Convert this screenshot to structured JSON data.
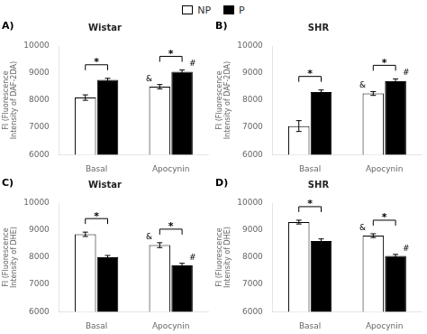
{
  "chart_data": [
    {
      "type": "bar",
      "panel_label": "A)",
      "title": "Wistar",
      "ylabel": "FI (Fluorescence\nIntensity of DAF-2DA)",
      "categories": [
        "Basal",
        "Apocynin"
      ],
      "series": [
        {
          "name": "NP",
          "color": "white",
          "edge_color": "black",
          "values": [
            8100,
            8500
          ],
          "errors": [
            100,
            80
          ]
        },
        {
          "name": "P",
          "color": "black",
          "edge_color": "black",
          "values": [
            8750,
            9050
          ],
          "errors": [
            60,
            70
          ]
        }
      ],
      "ylim": [
        6000,
        10000
      ],
      "yticks": [
        6000,
        7000,
        8000,
        9000,
        10000
      ],
      "grid": false,
      "annotations": [
        {
          "text": "*",
          "category": "Basal",
          "between": [
            "NP",
            "P"
          ]
        },
        {
          "text": "*",
          "category": "Apocynin",
          "between": [
            "NP",
            "P"
          ]
        },
        {
          "text": "&",
          "category": "Apocynin",
          "series": "NP"
        },
        {
          "text": "#",
          "category": "Apocynin",
          "series": "P"
        }
      ]
    },
    {
      "type": "bar",
      "panel_label": "B)",
      "title": "SHR",
      "ylabel": "FI (Fluorescence\nIntensity of DAF-2DA)",
      "categories": [
        "Basal",
        "Apocynin"
      ],
      "series": [
        {
          "name": "NP",
          "color": "white",
          "edge_color": "black",
          "values": [
            7050,
            8250
          ],
          "errors": [
            200,
            70
          ]
        },
        {
          "name": "P",
          "color": "black",
          "edge_color": "black",
          "values": [
            8300,
            8700
          ],
          "errors": [
            80,
            90
          ]
        }
      ],
      "ylim": [
        6000,
        10000
      ],
      "yticks": [
        6000,
        7000,
        8000,
        9000,
        10000
      ],
      "grid": false,
      "annotations": [
        {
          "text": "*",
          "category": "Basal",
          "between": [
            "NP",
            "P"
          ]
        },
        {
          "text": "*",
          "category": "Apocynin",
          "between": [
            "NP",
            "P"
          ]
        },
        {
          "text": "&",
          "category": "Apocynin",
          "series": "NP"
        },
        {
          "text": "#",
          "category": "Apocynin",
          "series": "P"
        }
      ]
    },
    {
      "type": "bar",
      "panel_label": "C)",
      "title": "Wistar",
      "ylabel": "FI (Fluorescence\nIntensity of DHE)",
      "categories": [
        "Basal",
        "Apocynin"
      ],
      "series": [
        {
          "name": "NP",
          "color": "white",
          "edge_color": "black",
          "values": [
            8850,
            8450
          ],
          "errors": [
            80,
            90
          ]
        },
        {
          "name": "P",
          "color": "black",
          "edge_color": "black",
          "values": [
            8000,
            7700
          ],
          "errors": [
            70,
            80
          ]
        }
      ],
      "ylim": [
        6000,
        10000
      ],
      "yticks": [
        6000,
        7000,
        8000,
        9000,
        10000
      ],
      "grid": false,
      "annotations": [
        {
          "text": "*",
          "category": "Basal",
          "between": [
            "NP",
            "P"
          ]
        },
        {
          "text": "*",
          "category": "Apocynin",
          "between": [
            "NP",
            "P"
          ]
        },
        {
          "text": "&",
          "category": "Apocynin",
          "series": "NP"
        },
        {
          "text": "#",
          "category": "Apocynin",
          "series": "P"
        }
      ]
    },
    {
      "type": "bar",
      "panel_label": "D)",
      "title": "SHR",
      "ylabel": "FI (Fluorescence\nIntensity of DHE)",
      "categories": [
        "Basal",
        "Apocynin"
      ],
      "series": [
        {
          "name": "NP",
          "color": "white",
          "edge_color": "black",
          "values": [
            9300,
            8800
          ],
          "errors": [
            70,
            70
          ]
        },
        {
          "name": "P",
          "color": "black",
          "edge_color": "black",
          "values": [
            8600,
            8050
          ],
          "errors": [
            80,
            60
          ]
        }
      ],
      "ylim": [
        6000,
        10000
      ],
      "yticks": [
        6000,
        7000,
        8000,
        9000,
        10000
      ],
      "grid": false,
      "annotations": [
        {
          "text": "*",
          "category": "Basal",
          "between": [
            "NP",
            "P"
          ]
        },
        {
          "text": "*",
          "category": "Apocynin",
          "between": [
            "NP",
            "P"
          ]
        },
        {
          "text": "&",
          "category": "Apocynin",
          "series": "NP"
        },
        {
          "text": "#",
          "category": "Apocynin",
          "series": "P"
        }
      ]
    }
  ]
}
